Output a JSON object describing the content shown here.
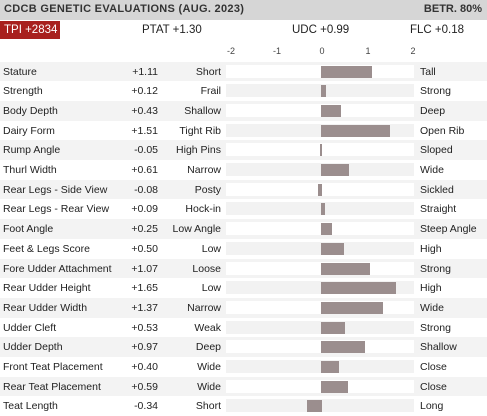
{
  "header": {
    "title": "CDCB GENETIC EVALUATIONS (AUG. 2023)",
    "betr": "BETR. 80%",
    "tpi": "TPI +2834",
    "ptat": "PTAT +1.30",
    "udc": "UDC +0.99",
    "flc": "FLC +0.18"
  },
  "colors": {
    "bar": "#9b8e8e",
    "badge": "#a8201e",
    "title_bar": "#d6d6d6"
  },
  "chart_data": {
    "type": "bar",
    "orientation": "horizontal",
    "xlim": [
      -2,
      2
    ],
    "ticks": [
      "-2",
      "-1",
      "0",
      "1",
      "2"
    ],
    "grid": false,
    "rows": [
      {
        "trait": "Stature",
        "value": 1.11,
        "label": "+1.11",
        "low": "Short",
        "high": "Tall"
      },
      {
        "trait": "Strength",
        "value": 0.12,
        "label": "+0.12",
        "low": "Frail",
        "high": "Strong"
      },
      {
        "trait": "Body Depth",
        "value": 0.43,
        "label": "+0.43",
        "low": "Shallow",
        "high": "Deep"
      },
      {
        "trait": "Dairy Form",
        "value": 1.51,
        "label": "+1.51",
        "low": "Tight Rib",
        "high": "Open Rib"
      },
      {
        "trait": "Rump Angle",
        "value": -0.05,
        "label": "-0.05",
        "low": "High Pins",
        "high": "Sloped"
      },
      {
        "trait": "Thurl Width",
        "value": 0.61,
        "label": "+0.61",
        "low": "Narrow",
        "high": "Wide"
      },
      {
        "trait": "Rear Legs - Side View",
        "value": -0.08,
        "label": "-0.08",
        "low": "Posty",
        "high": "Sickled"
      },
      {
        "trait": "Rear Legs - Rear View",
        "value": 0.09,
        "label": "+0.09",
        "low": "Hock-in",
        "high": "Straight"
      },
      {
        "trait": "Foot Angle",
        "value": 0.25,
        "label": "+0.25",
        "low": "Low Angle",
        "high": "Steep Angle"
      },
      {
        "trait": "Feet & Legs Score",
        "value": 0.5,
        "label": "+0.50",
        "low": "Low",
        "high": "High"
      },
      {
        "trait": "Fore Udder Attachment",
        "value": 1.07,
        "label": "+1.07",
        "low": "Loose",
        "high": "Strong"
      },
      {
        "trait": "Rear Udder Height",
        "value": 1.65,
        "label": "+1.65",
        "low": "Low",
        "high": "High"
      },
      {
        "trait": "Rear Udder Width",
        "value": 1.37,
        "label": "+1.37",
        "low": "Narrow",
        "high": "Wide"
      },
      {
        "trait": "Udder Cleft",
        "value": 0.53,
        "label": "+0.53",
        "low": "Weak",
        "high": "Strong"
      },
      {
        "trait": "Udder Depth",
        "value": 0.97,
        "label": "+0.97",
        "low": "Deep",
        "high": "Shallow"
      },
      {
        "trait": "Front Teat Placement",
        "value": 0.4,
        "label": "+0.40",
        "low": "Wide",
        "high": "Close"
      },
      {
        "trait": "Rear Teat Placement",
        "value": 0.59,
        "label": "+0.59",
        "low": "Wide",
        "high": "Close"
      },
      {
        "trait": "Teat Length",
        "value": -0.34,
        "label": "-0.34",
        "low": "Short",
        "high": "Long"
      }
    ]
  }
}
